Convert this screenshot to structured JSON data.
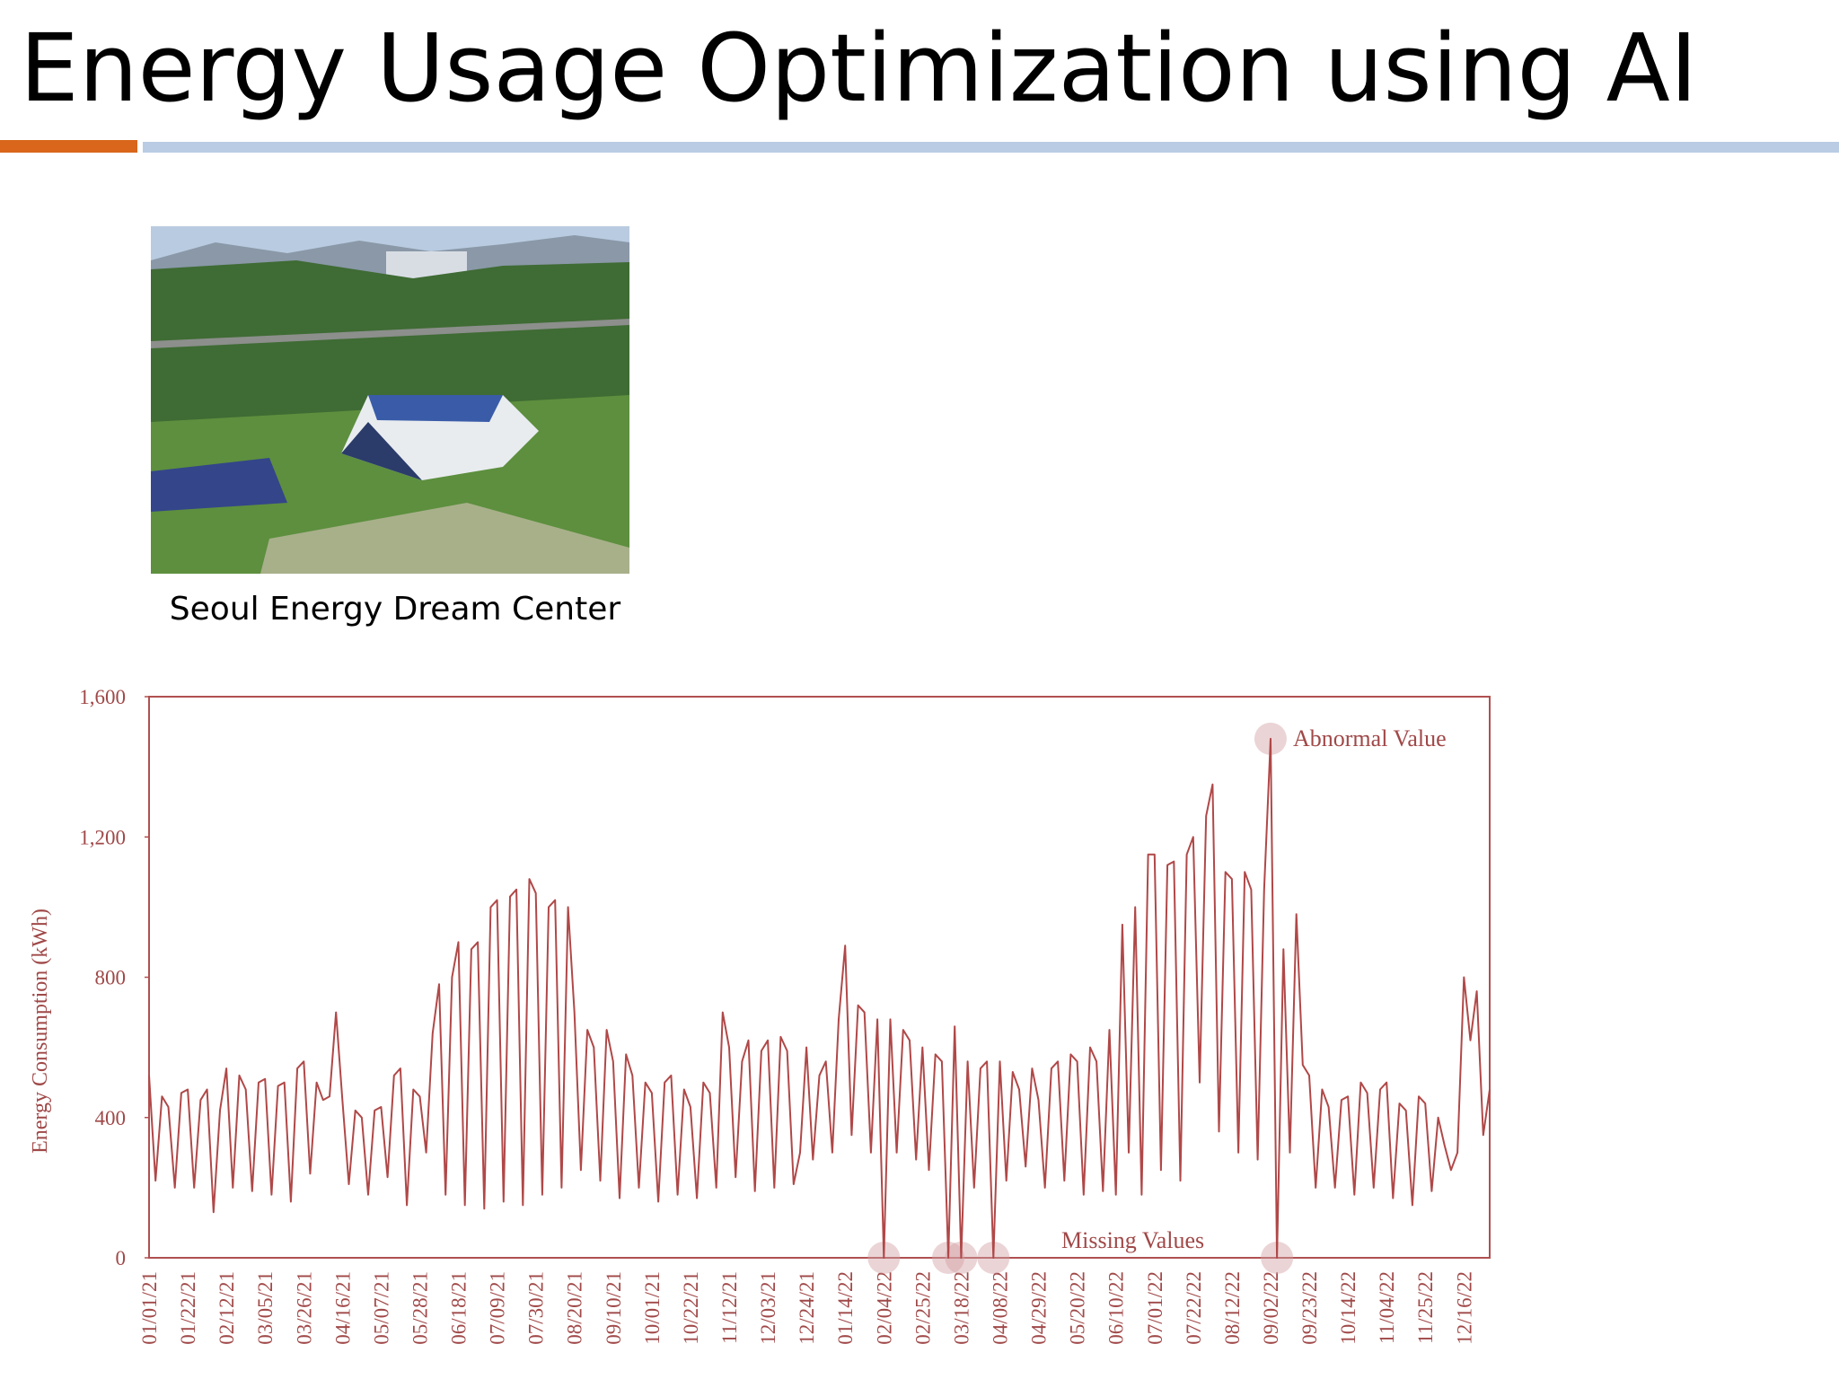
{
  "header": {
    "title": "Energy Usage Optimization using AI"
  },
  "photo": {
    "caption": "Seoul Energy Dream Center"
  },
  "chart_data": {
    "type": "line",
    "y_label": "Energy Consumption (kWh)",
    "annotations": [
      "Abnormal Value",
      "Missing Values"
    ],
    "color": "#b04848",
    "ylim": [
      0,
      1600
    ],
    "yticks": [
      0,
      400,
      800,
      {
        "value": 1200,
        "label": "1,200"
      },
      {
        "value": 1600,
        "label": "1,600"
      }
    ],
    "categories": [
      "01/01/21",
      null,
      null,
      null,
      null,
      null,
      "01/22/21",
      null,
      null,
      null,
      null,
      null,
      "02/12/21",
      null,
      null,
      null,
      null,
      null,
      "03/05/21",
      null,
      null,
      null,
      null,
      null,
      "03/26/21",
      null,
      null,
      null,
      null,
      null,
      "04/16/21",
      null,
      null,
      null,
      null,
      null,
      "05/07/21",
      null,
      null,
      null,
      null,
      null,
      "05/28/21",
      null,
      null,
      null,
      null,
      null,
      "06/18/21",
      null,
      null,
      null,
      null,
      null,
      "07/09/21",
      null,
      null,
      null,
      null,
      null,
      "07/30/21",
      null,
      null,
      null,
      null,
      null,
      "08/20/21",
      null,
      null,
      null,
      null,
      null,
      "09/10/21",
      null,
      null,
      null,
      null,
      null,
      "10/01/21",
      null,
      null,
      null,
      null,
      null,
      "10/22/21",
      null,
      null,
      null,
      null,
      null,
      "11/12/21",
      null,
      null,
      null,
      null,
      null,
      "12/03/21",
      null,
      null,
      null,
      null,
      null,
      "12/24/21",
      null,
      null,
      null,
      null,
      null,
      "01/14/22",
      null,
      null,
      null,
      null,
      null,
      "02/04/22",
      null,
      null,
      null,
      null,
      null,
      "02/25/22",
      null,
      null,
      null,
      null,
      null,
      "03/18/22",
      null,
      null,
      null,
      null,
      null,
      "04/08/22",
      null,
      null,
      null,
      null,
      null,
      "04/29/22",
      null,
      null,
      null,
      null,
      null,
      "05/20/22",
      null,
      null,
      null,
      null,
      null,
      "06/10/22",
      null,
      null,
      null,
      null,
      null,
      "07/01/22",
      null,
      null,
      null,
      null,
      null,
      "07/22/22",
      null,
      null,
      null,
      null,
      null,
      "08/12/22",
      null,
      null,
      null,
      null,
      null,
      "09/02/22",
      null,
      null,
      null,
      null,
      null,
      "09/23/22",
      null,
      null,
      null,
      null,
      null,
      "10/14/22",
      null,
      null,
      null,
      null,
      null,
      "11/04/22",
      null,
      null,
      null,
      null,
      null,
      "11/25/22",
      null,
      null,
      null,
      null,
      null,
      "12/16/22",
      null,
      null,
      null,
      null
    ],
    "values": [
      520,
      220,
      460,
      430,
      200,
      470,
      480,
      200,
      450,
      480,
      130,
      420,
      540,
      200,
      520,
      480,
      190,
      500,
      510,
      180,
      490,
      500,
      160,
      540,
      560,
      240,
      500,
      450,
      460,
      700,
      450,
      210,
      420,
      400,
      180,
      420,
      430,
      230,
      520,
      540,
      150,
      480,
      460,
      300,
      640,
      780,
      180,
      800,
      900,
      150,
      880,
      900,
      140,
      1000,
      1020,
      160,
      1030,
      1050,
      150,
      1080,
      1040,
      180,
      1000,
      1020,
      200,
      1000,
      700,
      250,
      650,
      600,
      220,
      650,
      560,
      170,
      580,
      520,
      200,
      500,
      470,
      160,
      500,
      520,
      180,
      480,
      430,
      170,
      500,
      470,
      200,
      700,
      600,
      230,
      560,
      620,
      190,
      590,
      620,
      200,
      630,
      590,
      210,
      300,
      600,
      280,
      520,
      560,
      300,
      680,
      890,
      350,
      720,
      700,
      300,
      680,
      0,
      680,
      300,
      650,
      620,
      280,
      600,
      250,
      580,
      560,
      0,
      660,
      0,
      560,
      200,
      540,
      560,
      0,
      560,
      220,
      530,
      480,
      260,
      540,
      450,
      200,
      540,
      560,
      220,
      580,
      560,
      180,
      600,
      560,
      190,
      650,
      180,
      950,
      300,
      1000,
      180,
      1150,
      1150,
      250,
      1120,
      1130,
      220,
      1150,
      1200,
      500,
      1260,
      1350,
      360,
      1100,
      1080,
      300,
      1100,
      1050,
      280,
      1050,
      1480,
      0,
      880,
      300,
      980,
      550,
      520,
      200,
      480,
      430,
      200,
      450,
      460,
      180,
      500,
      470,
      200,
      480,
      500,
      170,
      440,
      420,
      150,
      460,
      440,
      190,
      400,
      320,
      250,
      300,
      800,
      620,
      760,
      350,
      480
    ]
  }
}
